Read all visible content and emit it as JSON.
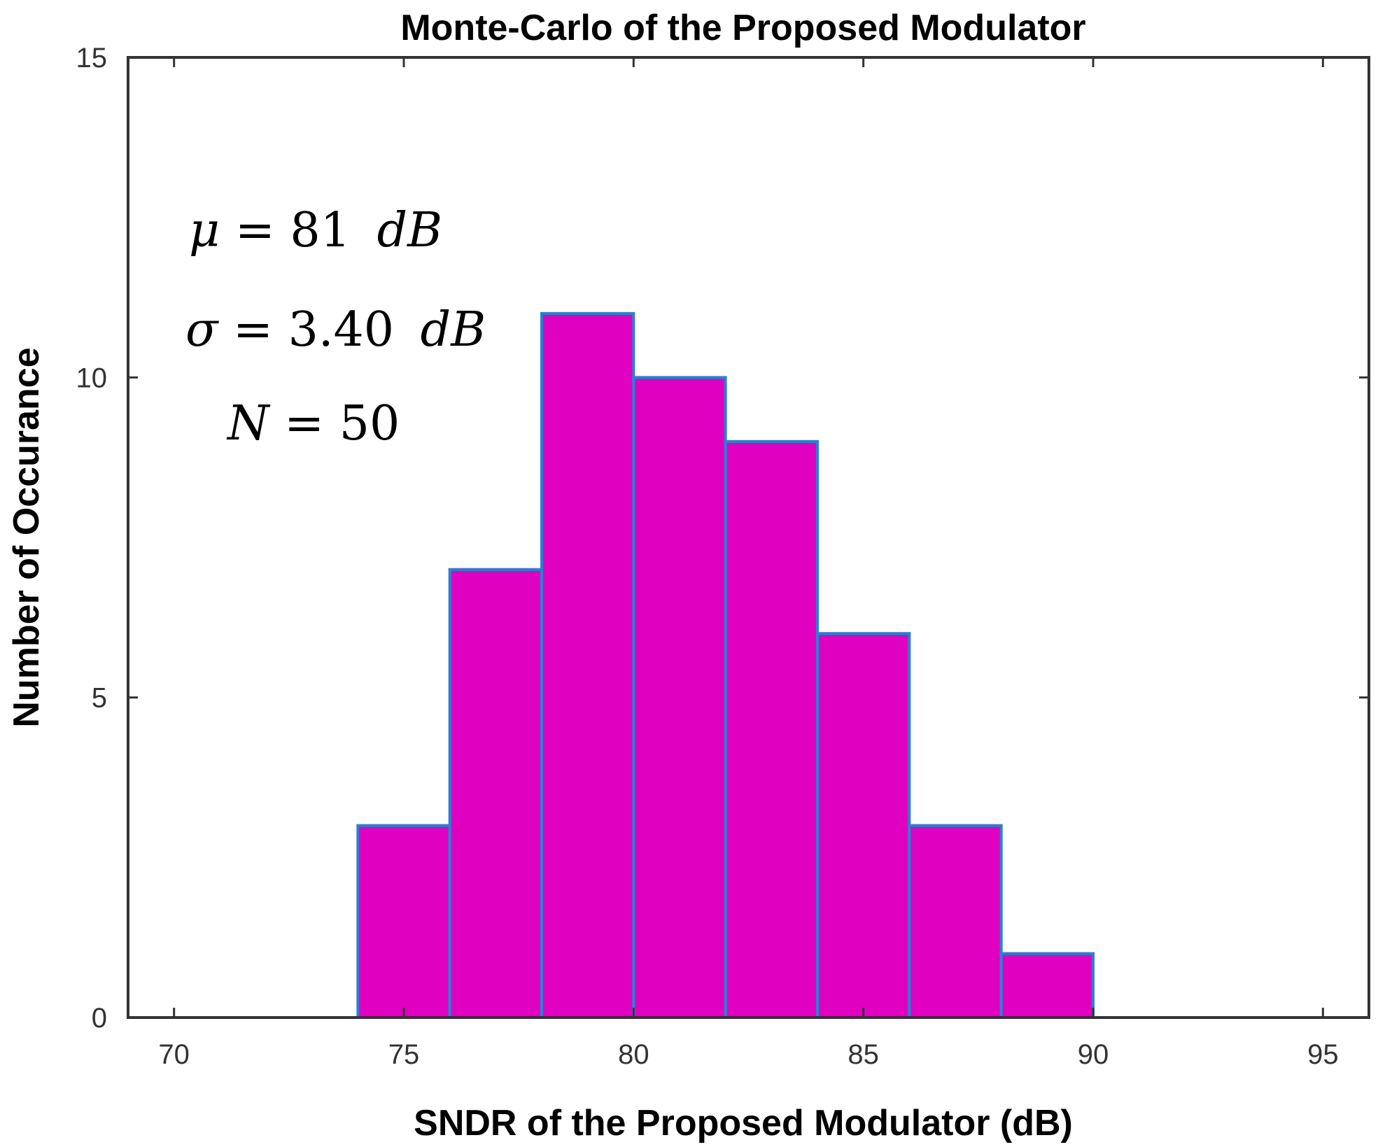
{
  "chart_data": {
    "type": "bar",
    "title": "Monte-Carlo of the Proposed Modulator",
    "xlabel": "SNDR of the Proposed Modulator (dB)",
    "ylabel": "Number of Occurance",
    "xlim": [
      69,
      96
    ],
    "ylim": [
      0,
      15
    ],
    "xticks": [
      "70",
      "75",
      "80",
      "85",
      "90",
      "95"
    ],
    "yticks": [
      "0",
      "5",
      "10",
      "15"
    ],
    "bins": [
      {
        "x0": 74,
        "x1": 76,
        "count": 3
      },
      {
        "x0": 76,
        "x1": 78,
        "count": 7
      },
      {
        "x0": 78,
        "x1": 80,
        "count": 11
      },
      {
        "x0": 80,
        "x1": 82,
        "count": 10
      },
      {
        "x0": 82,
        "x1": 84,
        "count": 9
      },
      {
        "x0": 84,
        "x1": 86,
        "count": 6
      },
      {
        "x0": 86,
        "x1": 88,
        "count": 3
      },
      {
        "x0": 88,
        "x1": 90,
        "count": 1
      }
    ],
    "grid": false,
    "bar_color": "#e000c0",
    "bar_edge_color": "#2d7fd6",
    "annotations": {
      "mu": {
        "symbol": "μ",
        "value": "81",
        "unit": "dB"
      },
      "sigma": {
        "symbol": "σ",
        "value": "3.40",
        "unit": "dB"
      },
      "n": {
        "symbol": "N",
        "value": "50"
      }
    }
  }
}
